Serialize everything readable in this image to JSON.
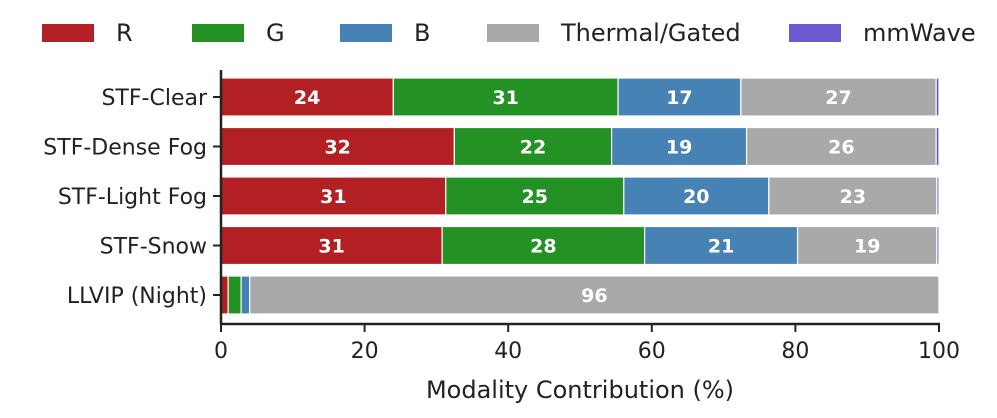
{
  "chart_data": {
    "type": "bar",
    "orientation": "horizontal",
    "stacked": true,
    "title": "",
    "xlabel": "Modality Contribution (%)",
    "ylabel": "",
    "xlim": [
      0,
      100
    ],
    "xticks": [
      0,
      20,
      40,
      60,
      80,
      100
    ],
    "categories": [
      "STF-Clear",
      "STF-Dense Fog",
      "STF-Light Fog",
      "STF-Snow",
      "LLVIP (Night)"
    ],
    "series": [
      {
        "name": "R",
        "color": "#b22024",
        "values": [
          24,
          32.5,
          31.3,
          30.8,
          1
        ],
        "labels": [
          "24",
          "32",
          "31",
          "31",
          ""
        ]
      },
      {
        "name": "G",
        "color": "#249124",
        "values": [
          31.3,
          21.9,
          24.8,
          28.2,
          1.8
        ],
        "labels": [
          "31",
          "22",
          "25",
          "28",
          ""
        ]
      },
      {
        "name": "B",
        "color": "#4682b4",
        "values": [
          17.1,
          18.8,
          20.2,
          21.3,
          1.2
        ],
        "labels": [
          "17",
          "19",
          "20",
          "21",
          ""
        ]
      },
      {
        "name": "Thermal/Gated",
        "color": "#a9a9a9",
        "values": [
          27.2,
          26.4,
          23.4,
          19.4,
          96
        ],
        "labels": [
          "27",
          "26",
          "23",
          "19",
          "96"
        ]
      },
      {
        "name": "mmWave",
        "color": "#6a5acd",
        "values": [
          0.4,
          0.4,
          0.3,
          0.3,
          0
        ],
        "labels": [
          "",
          "",
          "",
          "",
          ""
        ]
      }
    ],
    "legend_position": "top"
  }
}
